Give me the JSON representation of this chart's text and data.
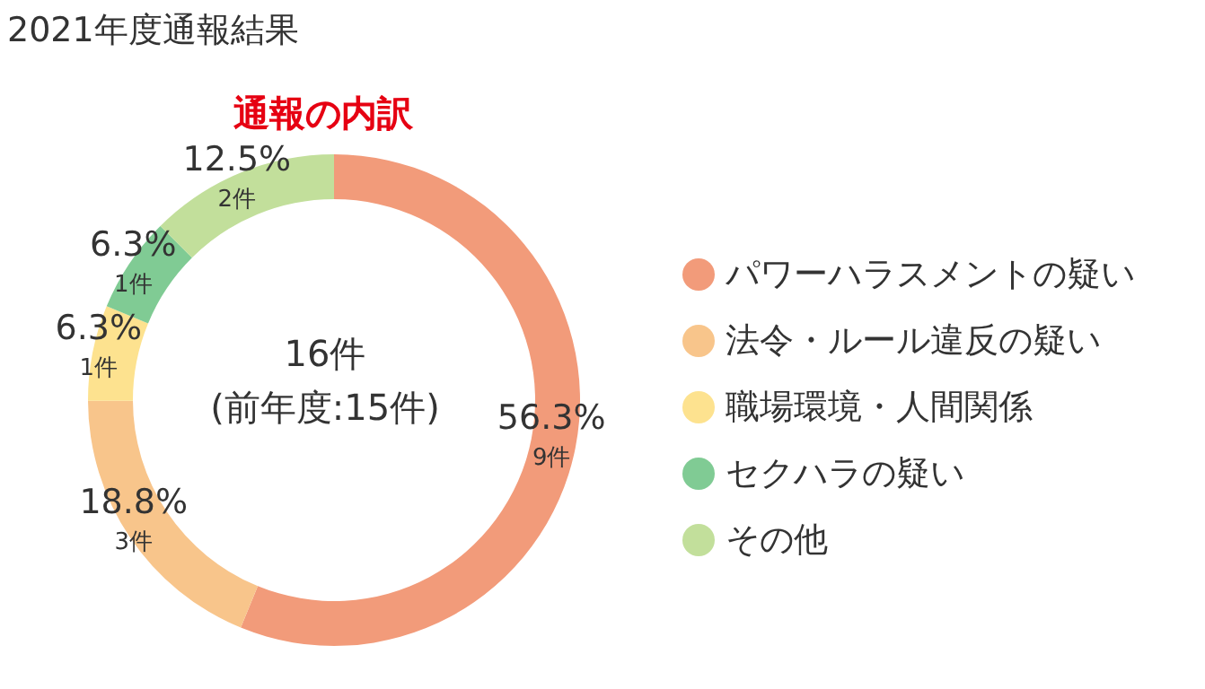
{
  "chart_data": {
    "type": "donut",
    "title": "2021年度通報結果",
    "subtitle": "通報の内訳",
    "categories": [
      "パワーハラスメントの疑い",
      "法令・ルール違反の疑い",
      "職場環境・人間関係",
      "セクハラの疑い",
      "その他"
    ],
    "values": [
      56.3,
      18.8,
      6.3,
      6.3,
      12.5
    ],
    "value_labels": [
      "56.3% 9件",
      "18.8% 3件",
      "6.3% 1件",
      "6.3% 1件",
      "12.5% 2件"
    ],
    "colors": [
      "#f29b7a",
      "#f8c58b",
      "#fde28f",
      "#80cb94",
      "#c2df9b"
    ],
    "annotations": [
      "16件",
      "(前年度:15件)"
    ],
    "legend": "right"
  }
}
